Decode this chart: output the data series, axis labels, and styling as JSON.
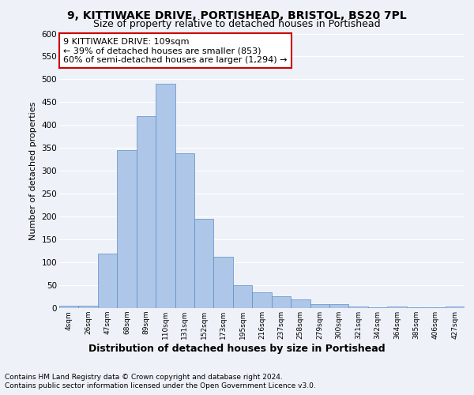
{
  "title1": "9, KITTIWAKE DRIVE, PORTISHEAD, BRISTOL, BS20 7PL",
  "title2": "Size of property relative to detached houses in Portishead",
  "xlabel": "Distribution of detached houses by size in Portishead",
  "ylabel": "Number of detached properties",
  "categories": [
    "4sqm",
    "26sqm",
    "47sqm",
    "68sqm",
    "89sqm",
    "110sqm",
    "131sqm",
    "152sqm",
    "173sqm",
    "195sqm",
    "216sqm",
    "237sqm",
    "258sqm",
    "279sqm",
    "300sqm",
    "321sqm",
    "342sqm",
    "364sqm",
    "385sqm",
    "406sqm",
    "427sqm"
  ],
  "values": [
    5,
    5,
    120,
    345,
    420,
    490,
    338,
    195,
    113,
    50,
    35,
    26,
    19,
    8,
    8,
    4,
    2,
    4,
    1,
    1,
    4
  ],
  "bar_color": "#aec6e8",
  "bar_edge_color": "#5a8fc2",
  "annotation_box_text": "9 KITTIWAKE DRIVE: 109sqm\n← 39% of detached houses are smaller (853)\n60% of semi-detached houses are larger (1,294) →",
  "annotation_box_color": "#ffffff",
  "annotation_box_edge_color": "#cc0000",
  "footer_line1": "Contains HM Land Registry data © Crown copyright and database right 2024.",
  "footer_line2": "Contains public sector information licensed under the Open Government Licence v3.0.",
  "ylim": [
    0,
    600
  ],
  "yticks": [
    0,
    50,
    100,
    150,
    200,
    250,
    300,
    350,
    400,
    450,
    500,
    550,
    600
  ],
  "bg_color": "#eef2f8",
  "plot_bg_color": "#eef2f8",
  "grid_color": "#ffffff",
  "title1_fontsize": 10,
  "title2_fontsize": 9,
  "xlabel_fontsize": 9,
  "ylabel_fontsize": 8,
  "annotation_fontsize": 8,
  "footer_fontsize": 6.5,
  "tick_fontsize": 7.5,
  "xtick_fontsize": 6.5
}
